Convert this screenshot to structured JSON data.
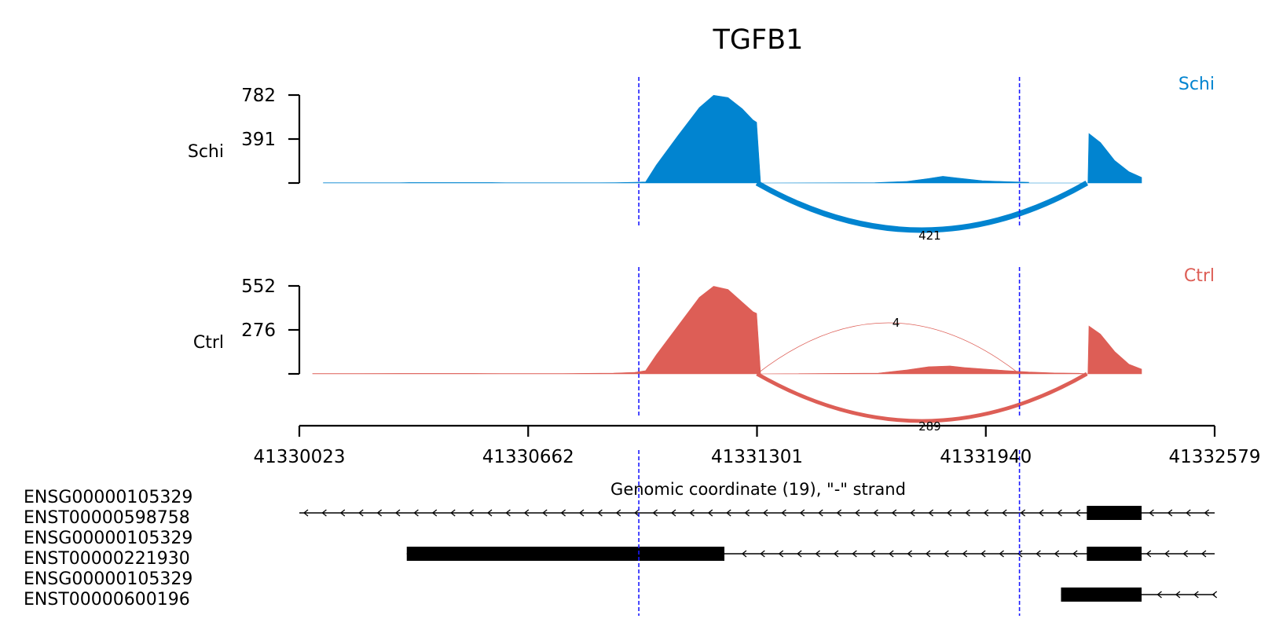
{
  "chart_data": {
    "type": "area",
    "title": "TGFB1",
    "xlabel": "Genomic coordinate (19), \"-\" strand",
    "xlim": [
      41330023,
      41332579
    ],
    "xticks": [
      41330023,
      41330662,
      41331301,
      41331940,
      41332579
    ],
    "xtick_labels": [
      "41330023",
      "41330662",
      "41331301",
      "41331940",
      "41332579"
    ],
    "highlight_lines": [
      41330971,
      41332034
    ],
    "series": [
      {
        "name": "Schi",
        "legend": "Schi",
        "color": "#0184d0",
        "ylim": [
          0,
          782
        ],
        "yticks": [
          391,
          782
        ],
        "ytick_labels": [
          "391",
          "782"
        ],
        "profile": [
          [
            41330090,
            2
          ],
          [
            41330300,
            2
          ],
          [
            41330330,
            4
          ],
          [
            41330560,
            4
          ],
          [
            41330600,
            2
          ],
          [
            41330800,
            2
          ],
          [
            41330905,
            3
          ],
          [
            41330960,
            6
          ],
          [
            41330990,
            10
          ],
          [
            41331020,
            160
          ],
          [
            41331080,
            420
          ],
          [
            41331140,
            670
          ],
          [
            41331180,
            780
          ],
          [
            41331220,
            760
          ],
          [
            41331260,
            660
          ],
          [
            41331290,
            560
          ],
          [
            41331300,
            540
          ],
          [
            41331311,
            0
          ],
          [
            41331630,
            3
          ],
          [
            41331720,
            15
          ],
          [
            41331780,
            40
          ],
          [
            41331820,
            60
          ],
          [
            41331860,
            45
          ],
          [
            41331930,
            20
          ],
          [
            41332000,
            12
          ],
          [
            41332060,
            6
          ],
          [
            41332060,
            0
          ],
          [
            41332225,
            0
          ],
          [
            41332228,
            440
          ],
          [
            41332260,
            360
          ],
          [
            41332300,
            200
          ],
          [
            41332340,
            100
          ],
          [
            41332375,
            50
          ]
        ],
        "junctions": [
          {
            "from": 41331301,
            "to": 41332222,
            "count": 421,
            "count_label": "421",
            "side": "below"
          }
        ]
      },
      {
        "name": "Ctrl",
        "legend": "Ctrl",
        "color": "#dd5e56",
        "ylim": [
          0,
          552
        ],
        "yticks": [
          276,
          552
        ],
        "ytick_labels": [
          "276",
          "552"
        ],
        "profile": [
          [
            41330060,
            2
          ],
          [
            41330190,
            2
          ],
          [
            41330310,
            3
          ],
          [
            41330510,
            3
          ],
          [
            41330590,
            2
          ],
          [
            41330760,
            2
          ],
          [
            41330900,
            5
          ],
          [
            41330960,
            10
          ],
          [
            41330990,
            20
          ],
          [
            41331020,
            120
          ],
          [
            41331080,
            300
          ],
          [
            41331140,
            480
          ],
          [
            41331180,
            550
          ],
          [
            41331220,
            530
          ],
          [
            41331260,
            450
          ],
          [
            41331290,
            390
          ],
          [
            41331300,
            380
          ],
          [
            41331311,
            0
          ],
          [
            41331640,
            5
          ],
          [
            41331720,
            25
          ],
          [
            41331780,
            45
          ],
          [
            41331840,
            50
          ],
          [
            41331880,
            40
          ],
          [
            41331940,
            30
          ],
          [
            41332000,
            20
          ],
          [
            41332060,
            12
          ],
          [
            41332130,
            6
          ],
          [
            41332200,
            4
          ],
          [
            41332225,
            0
          ],
          [
            41332228,
            300
          ],
          [
            41332260,
            250
          ],
          [
            41332300,
            140
          ],
          [
            41332340,
            60
          ],
          [
            41332375,
            30
          ]
        ],
        "junctions": [
          {
            "from": 41331301,
            "to": 41332034,
            "count": 4,
            "count_label": "4",
            "side": "above"
          },
          {
            "from": 41331301,
            "to": 41332222,
            "count": 289,
            "count_label": "289",
            "side": "below"
          }
        ]
      }
    ],
    "transcripts": [
      {
        "gene": "ENSG00000105329",
        "transcript": "ENST00000598758",
        "start": 41330023,
        "end": 41332579,
        "exons": [
          [
            41332222,
            41332375
          ]
        ]
      },
      {
        "gene": "ENSG00000105329",
        "transcript": "ENST00000221930",
        "start": 41330323,
        "end": 41332579,
        "exons": [
          [
            41330323,
            41331210
          ],
          [
            41332222,
            41332375
          ]
        ]
      },
      {
        "gene": "ENSG00000105329",
        "transcript": "ENST00000600196",
        "start": 41332150,
        "end": 41332579,
        "exons": [
          [
            41332150,
            41332375
          ]
        ]
      }
    ]
  }
}
